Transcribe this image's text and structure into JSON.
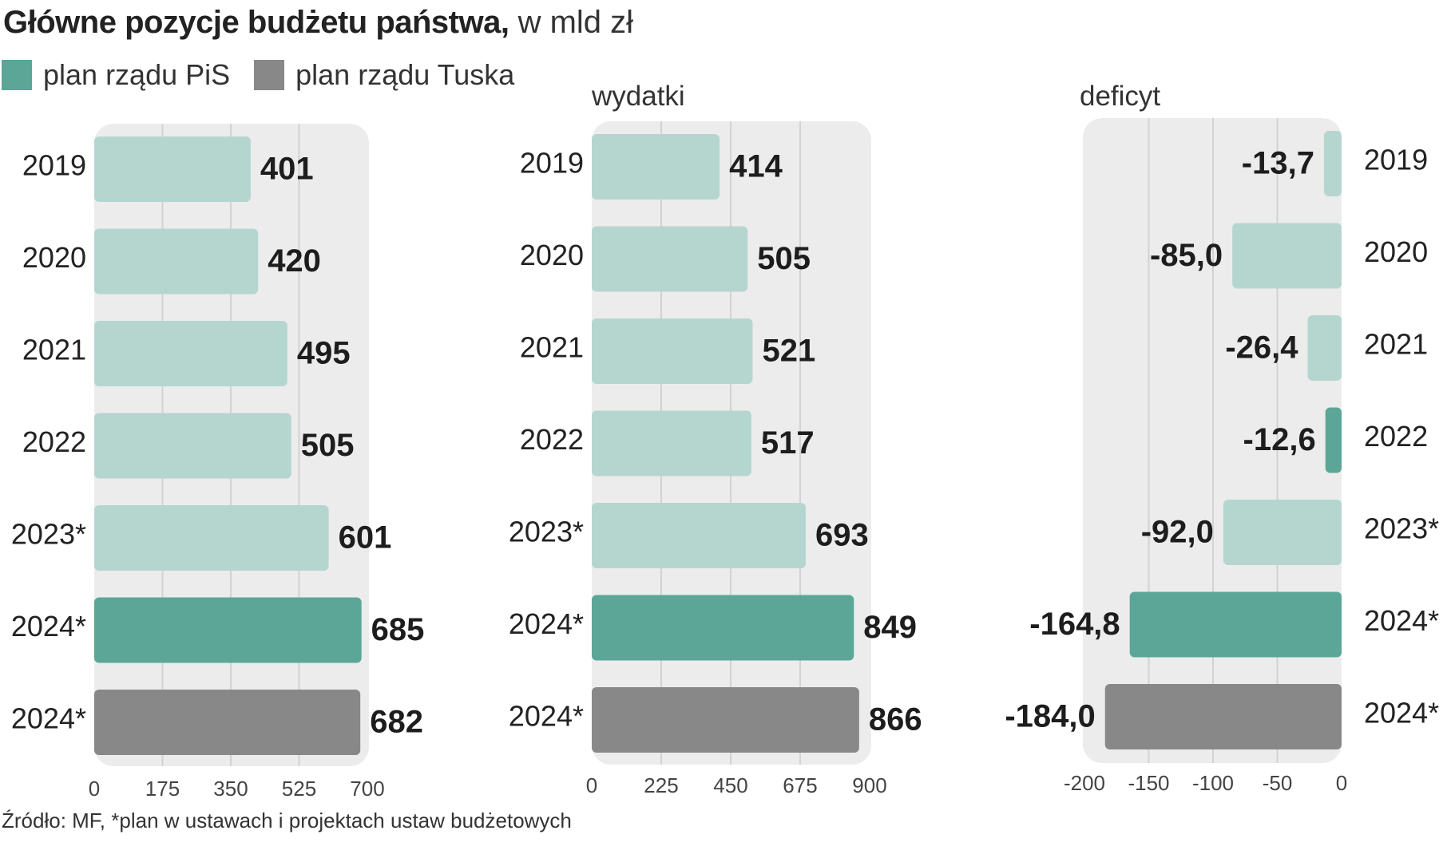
{
  "title": {
    "bold": "Główne pozycje budżetu państwa,",
    "unit": "w mld zł"
  },
  "legend": [
    {
      "label": "plan rządu PiS",
      "color": "#5ba697"
    },
    {
      "label": "plan rządu Tuska",
      "color": "#888888"
    }
  ],
  "colors": {
    "pis_light": "#b5d6cf",
    "pis_dark": "#5ba697",
    "tusk": "#888888",
    "panel": "#ececec",
    "grid": "#d2d2d2"
  },
  "chart_data": [
    {
      "type": "bar",
      "title": "",
      "categories": [
        "2019",
        "2020",
        "2021",
        "2022",
        "2023*",
        "2024*",
        "2024*"
      ],
      "values": [
        401,
        420,
        495,
        505,
        601,
        685,
        682
      ],
      "value_labels": [
        "401",
        "420",
        "495",
        "505",
        "601",
        "685",
        "682"
      ],
      "bar_styles": [
        "pis_light",
        "pis_light",
        "pis_light",
        "pis_light",
        "pis_light",
        "pis_dark",
        "tusk"
      ],
      "xlim": [
        0,
        700
      ],
      "ticks": [
        0,
        175,
        350,
        525,
        700
      ],
      "tick_labels": [
        "0",
        "175",
        "350",
        "525",
        "700"
      ]
    },
    {
      "type": "bar",
      "title": "wydatki",
      "categories": [
        "2019",
        "2020",
        "2021",
        "2022",
        "2023*",
        "2024*",
        "2024*"
      ],
      "values": [
        414,
        505,
        521,
        517,
        693,
        849,
        866
      ],
      "value_labels": [
        "414",
        "505",
        "521",
        "517",
        "693",
        "849",
        "866"
      ],
      "bar_styles": [
        "pis_light",
        "pis_light",
        "pis_light",
        "pis_light",
        "pis_light",
        "pis_dark",
        "tusk"
      ],
      "xlim": [
        0,
        900
      ],
      "ticks": [
        0,
        225,
        450,
        675,
        900
      ],
      "tick_labels": [
        "0",
        "225",
        "450",
        "675",
        "900"
      ]
    },
    {
      "type": "bar",
      "title": "deficyt",
      "categories": [
        "2019",
        "2020",
        "2021",
        "2022",
        "2023*",
        "2024*",
        "2024*"
      ],
      "values": [
        -13.7,
        -85.0,
        -26.4,
        -12.6,
        -92.0,
        -164.8,
        -184.0
      ],
      "value_labels": [
        "-13,7",
        "-85,0",
        "-26,4",
        "-12,6",
        "-92,0",
        "-164,8",
        "-184,0"
      ],
      "bar_styles": [
        "pis_light",
        "pis_light",
        "pis_light",
        "pis_dark",
        "pis_light",
        "pis_dark",
        "tusk"
      ],
      "xlim": [
        -200,
        0
      ],
      "ticks": [
        -200,
        -150,
        -100,
        -50,
        0
      ],
      "tick_labels": [
        "-200",
        "-150",
        "-100",
        "-50",
        "0"
      ]
    }
  ],
  "source": "Źródło: MF, *plan w ustawach i projektach ustaw budżetowych"
}
